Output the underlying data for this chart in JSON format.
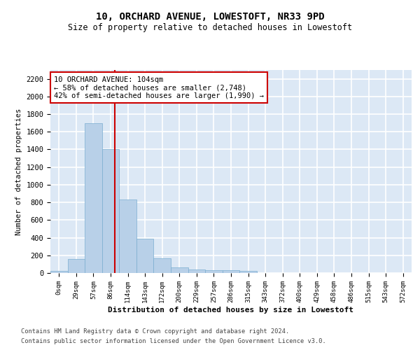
{
  "title": "10, ORCHARD AVENUE, LOWESTOFT, NR33 9PD",
  "subtitle": "Size of property relative to detached houses in Lowestoft",
  "xlabel": "Distribution of detached houses by size in Lowestoft",
  "ylabel": "Number of detached properties",
  "bar_labels": [
    "0sqm",
    "29sqm",
    "57sqm",
    "86sqm",
    "114sqm",
    "143sqm",
    "172sqm",
    "200sqm",
    "229sqm",
    "257sqm",
    "286sqm",
    "315sqm",
    "343sqm",
    "372sqm",
    "400sqm",
    "429sqm",
    "458sqm",
    "486sqm",
    "515sqm",
    "543sqm",
    "572sqm"
  ],
  "bar_values": [
    20,
    155,
    1700,
    1400,
    835,
    385,
    165,
    65,
    40,
    30,
    30,
    20,
    0,
    0,
    0,
    0,
    0,
    0,
    0,
    0,
    0
  ],
  "bar_color": "#b8d0e8",
  "bar_edge_color": "#7aaed0",
  "background_color": "#dce8f5",
  "grid_color": "#ffffff",
  "red_line_x": 3.75,
  "annotation_text": "10 ORCHARD AVENUE: 104sqm\n← 58% of detached houses are smaller (2,748)\n42% of semi-detached houses are larger (1,990) →",
  "annotation_box_color": "#ffffff",
  "annotation_box_edge_color": "#cc0000",
  "red_line_color": "#cc0000",
  "ylim": [
    0,
    2300
  ],
  "yticks": [
    0,
    200,
    400,
    600,
    800,
    1000,
    1200,
    1400,
    1600,
    1800,
    2000,
    2200
  ],
  "footer_line1": "Contains HM Land Registry data © Crown copyright and database right 2024.",
  "footer_line2": "Contains public sector information licensed under the Open Government Licence v3.0."
}
